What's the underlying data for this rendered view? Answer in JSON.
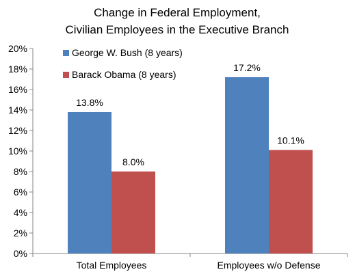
{
  "chart_data": {
    "type": "bar",
    "title_lines": [
      "Change in Federal Employment,",
      "Civilian Employees in the Executive Branch"
    ],
    "categories": [
      "Total Employees",
      "Employees w/o Defense"
    ],
    "series": [
      {
        "name": "George W. Bush (8 years)",
        "color": "#4F81BD",
        "values": [
          13.8,
          17.2
        ],
        "labels": [
          "13.8%",
          "17.2%"
        ]
      },
      {
        "name": "Barack Obama (8 years)",
        "color": "#C0504D",
        "values": [
          8.0,
          10.1
        ],
        "labels": [
          "8.0%",
          "10.1%"
        ]
      }
    ],
    "ylim": [
      0,
      20
    ],
    "y_ticks": [
      "0%",
      "2%",
      "4%",
      "6%",
      "8%",
      "10%",
      "12%",
      "14%",
      "16%",
      "18%",
      "20%"
    ],
    "grid": false,
    "legend_position": "top-left"
  }
}
